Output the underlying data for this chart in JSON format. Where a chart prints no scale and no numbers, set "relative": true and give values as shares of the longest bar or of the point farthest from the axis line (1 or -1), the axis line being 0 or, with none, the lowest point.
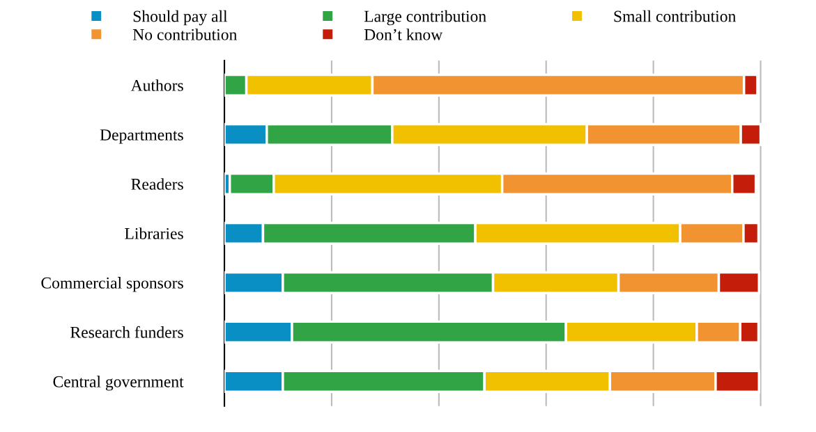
{
  "chart_data": {
    "type": "bar",
    "orientation": "horizontal",
    "stacked": true,
    "relative": true,
    "grid": "x",
    "legend": "top",
    "categories": [
      "Authors",
      "Departments",
      "Readers",
      "Libraries",
      "Commercial sponsors",
      "Research funders",
      "Central government"
    ],
    "series": [
      {
        "name": "Should pay all",
        "color": "#0a8fc4",
        "values": [
          0,
          0.079,
          0.01,
          0.072,
          0.109,
          0.126,
          0.109
        ]
      },
      {
        "name": "Large contribution",
        "color": "#31a445",
        "values": [
          0.041,
          0.234,
          0.082,
          0.396,
          0.392,
          0.511,
          0.376
        ]
      },
      {
        "name": "Small contribution",
        "color": "#f1c100",
        "values": [
          0.235,
          0.363,
          0.426,
          0.382,
          0.234,
          0.244,
          0.234
        ]
      },
      {
        "name": "No contribution",
        "color": "#f29332",
        "values": [
          0.693,
          0.287,
          0.429,
          0.118,
          0.187,
          0.081,
          0.197
        ]
      },
      {
        "name": "Don’t know",
        "color": "#c41e0a",
        "values": [
          0.025,
          0.037,
          0.044,
          0.028,
          0.075,
          0.034,
          0.081
        ]
      }
    ]
  }
}
